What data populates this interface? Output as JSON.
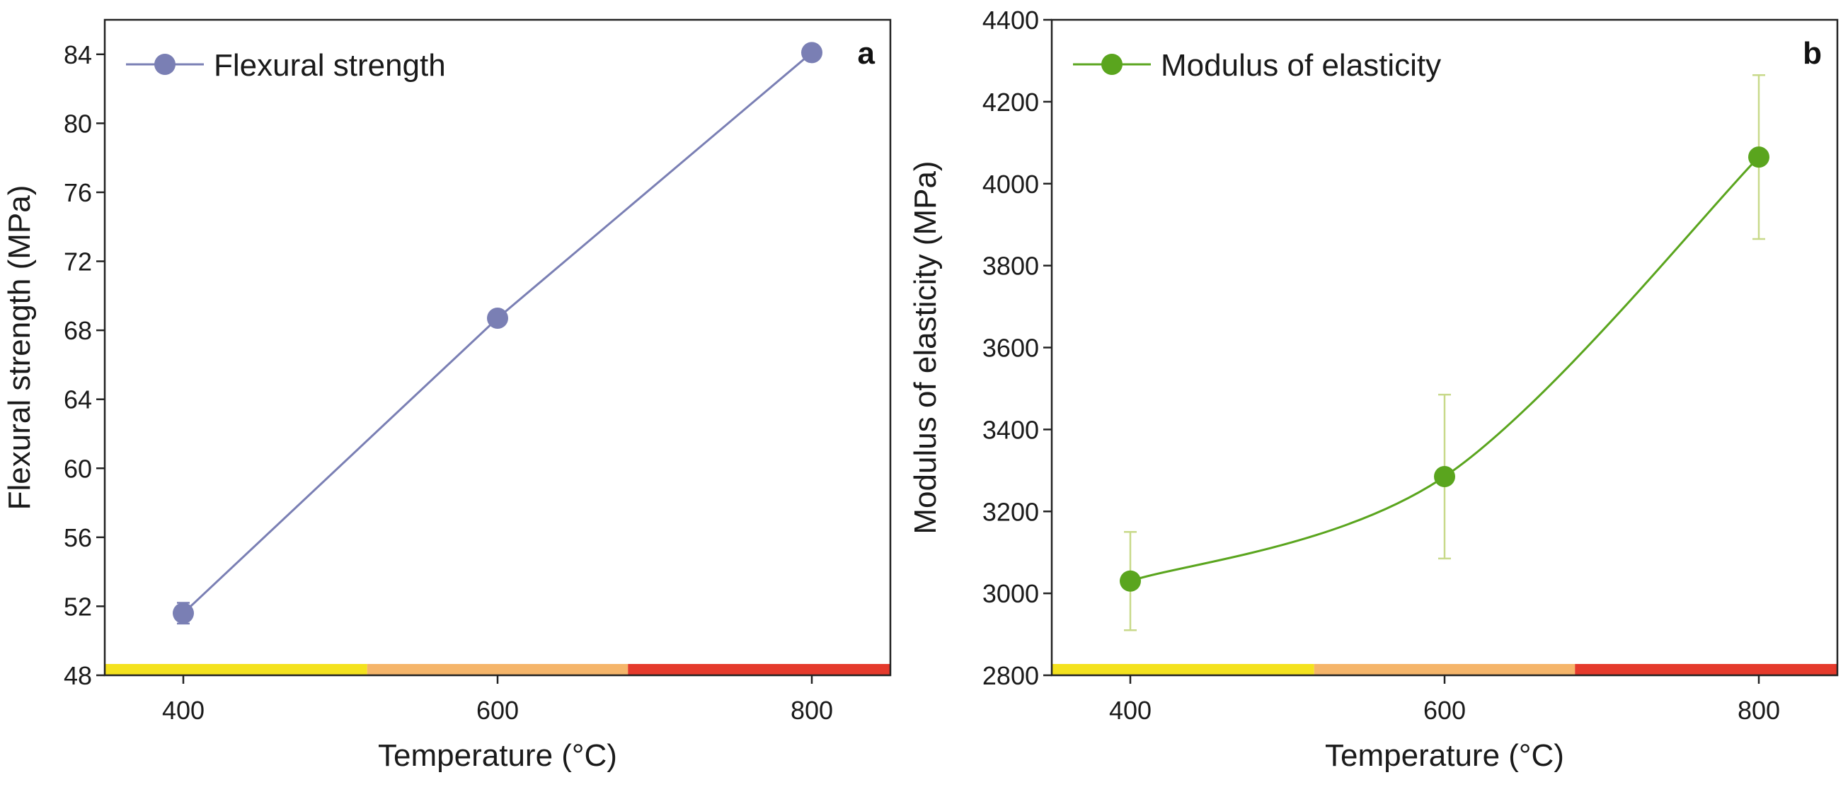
{
  "chart_data": [
    {
      "type": "line",
      "panel_label": "a",
      "title": "",
      "xlabel": "Temperature (°C)",
      "ylabel": "Flexural strength (MPa)",
      "categories": [
        "400",
        "600",
        "800"
      ],
      "x": [
        400,
        600,
        800
      ],
      "xlim": [
        350,
        850
      ],
      "ylim": [
        48,
        86
      ],
      "yticks": [
        48,
        52,
        56,
        60,
        64,
        68,
        72,
        76,
        80,
        84
      ],
      "series": [
        {
          "name": "Flexural strength",
          "values": [
            51.6,
            68.7,
            84.1
          ],
          "errors": [
            0.6,
            0.4,
            0.3
          ],
          "color": "#7a7fb4"
        }
      ],
      "legend": "top-left",
      "temperature_band": [
        {
          "from": 350,
          "to": 517,
          "color": "#f4e21e"
        },
        {
          "from": 517,
          "to": 683,
          "color": "#f5b56a"
        },
        {
          "from": 683,
          "to": 850,
          "color": "#e53a2c"
        }
      ]
    },
    {
      "type": "line",
      "panel_label": "b",
      "title": "",
      "xlabel": "Temperature (°C)",
      "ylabel": "Modulus of elasticity (MPa)",
      "categories": [
        "400",
        "600",
        "800"
      ],
      "x": [
        400,
        600,
        800
      ],
      "xlim": [
        350,
        850
      ],
      "ylim": [
        2800,
        4400
      ],
      "yticks": [
        2800,
        3000,
        3200,
        3400,
        3600,
        3800,
        4000,
        4200,
        4400
      ],
      "series": [
        {
          "name": "Modulus of elasticity",
          "values": [
            3030,
            3285,
            4065
          ],
          "errors": [
            120,
            200,
            200
          ],
          "color": "#5aa51e",
          "error_color": "#c8d98a",
          "smooth": true
        }
      ],
      "legend": "top-left",
      "temperature_band": [
        {
          "from": 350,
          "to": 517,
          "color": "#f4e21e"
        },
        {
          "from": 517,
          "to": 683,
          "color": "#f5b56a"
        },
        {
          "from": 683,
          "to": 850,
          "color": "#e53a2c"
        }
      ]
    }
  ]
}
